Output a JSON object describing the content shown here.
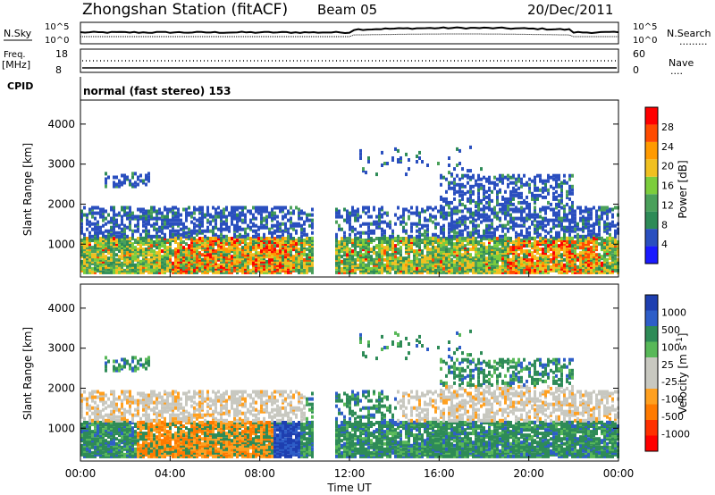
{
  "header": {
    "station": "Zhongshan Station (fitACF)",
    "beam": "Beam 05",
    "date": "20/Dec/2011"
  },
  "top_panels": {
    "nsky_label": "N.Sky",
    "nsky_ticks": [
      "10^5",
      "10^0"
    ],
    "nsearch_label": "N.Search",
    "nsearch_ticks": [
      "10^5",
      "10^0"
    ],
    "freq_label": "Freq.",
    "freq_unit": "[MHz]",
    "freq_ticks": [
      "18",
      "8"
    ],
    "nave_label": "Nave",
    "nave_ticks": [
      "60",
      "0"
    ],
    "cpid_label": "CPID",
    "cpid_value": "normal (fast stereo) 153"
  },
  "chart_data": [
    {
      "type": "heatmap",
      "name": "power",
      "ylabel": "Slant Range [km]",
      "ylim": [
        180,
        4600
      ],
      "yticks": [
        1000,
        2000,
        3000,
        4000
      ],
      "xlim": [
        0,
        24
      ],
      "colorbar_label": "Power [dB]",
      "colorbar_ticks": [
        "4",
        "8",
        "12",
        "16",
        "20",
        "24",
        "28"
      ],
      "colorbar_colors": [
        "#1a1aff",
        "#2a4fbf",
        "#2e8b57",
        "#4aa05a",
        "#7ccd3c",
        "#f0c020",
        "#ff9a00",
        "#ff4b00",
        "#ff0000"
      ]
    },
    {
      "type": "heatmap",
      "name": "velocity",
      "ylabel": "Slant Range [km]",
      "ylim": [
        180,
        4600
      ],
      "yticks": [
        1000,
        2000,
        3000,
        4000
      ],
      "xlim": [
        0,
        24
      ],
      "xlabel": "Time UT",
      "xticks": [
        "00:00",
        "04:00",
        "08:00",
        "12:00",
        "16:00",
        "20:00",
        "00:00"
      ],
      "colorbar_label": "Velocity [m s",
      "colorbar_label_sup": "-1",
      "colorbar_label_end": "]",
      "colorbar_ticks": [
        "1000",
        "500",
        "100",
        "25",
        "-25",
        "-100",
        "-500",
        "-1000"
      ],
      "colorbar_colors": [
        "#1e3fb0",
        "#2e5ec8",
        "#2e8b57",
        "#58b858",
        "#c8c8c0",
        "#c8c8c0",
        "#ffa020",
        "#ff7a00",
        "#ff3000",
        "#ff0000"
      ]
    }
  ]
}
